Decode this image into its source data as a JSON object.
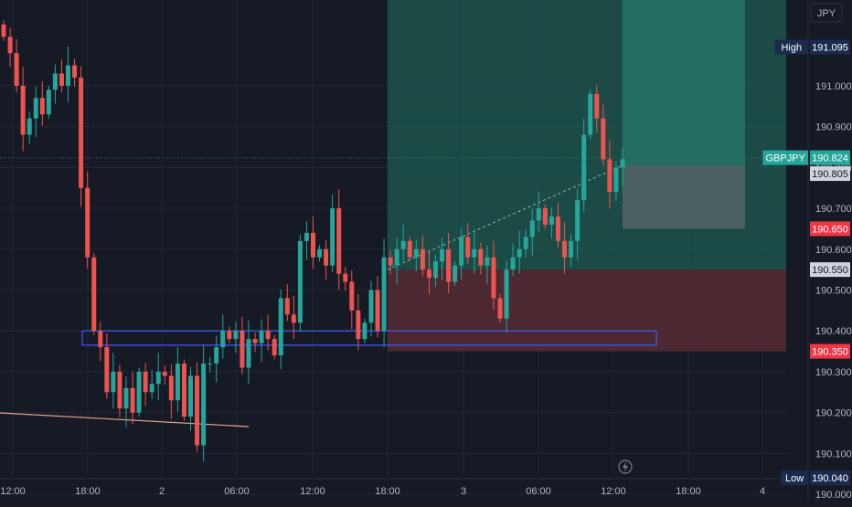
{
  "currency": "JPY",
  "chart_data": {
    "type": "candlestick",
    "symbol": "GBPJPY",
    "y_ticks": [
      "191.000",
      "190.900",
      "190.800",
      "190.700",
      "190.600",
      "190.500",
      "190.400",
      "190.300",
      "190.200",
      "190.100",
      "190.000"
    ],
    "ylim": [
      189.98,
      191.21
    ],
    "x_ticks": [
      "12:00",
      "18:00",
      "2",
      "06:00",
      "12:00",
      "18:00",
      "3",
      "06:00",
      "12:00",
      "18:00",
      "4"
    ],
    "tags": {
      "high": {
        "label": "High",
        "value": "191.095"
      },
      "symbol": {
        "label": "GBPJPY",
        "value": "190.824"
      },
      "last": {
        "value": "190.805"
      },
      "stop": {
        "value": "190.650"
      },
      "level": {
        "value": "190.550"
      },
      "target": {
        "value": "190.350"
      },
      "low": {
        "label": "Low",
        "value": "190.040"
      }
    },
    "zones": [
      {
        "name": "profit-zone",
        "from": 190.55,
        "to": 191.21,
        "color": "#1f5c52"
      },
      {
        "name": "loss-zone",
        "from": 190.35,
        "to": 190.55,
        "color": "#562c34"
      }
    ],
    "candles_close": [
      191.12,
      191.08,
      191.0,
      190.88,
      190.92,
      190.97,
      190.93,
      190.99,
      191.03,
      191.0,
      191.05,
      191.02,
      190.75,
      190.58,
      190.4,
      190.36,
      190.25,
      190.3,
      190.21,
      190.26,
      190.2,
      190.3,
      190.25,
      190.27,
      190.3,
      190.29,
      190.23,
      190.32,
      190.19,
      190.29,
      190.12,
      190.32,
      190.32,
      190.36,
      190.4,
      190.38,
      190.4,
      190.31,
      190.38,
      190.37,
      190.4,
      190.38,
      190.34,
      190.48,
      190.44,
      190.42,
      190.62,
      190.64,
      190.58,
      190.6,
      190.56,
      190.7,
      190.54,
      190.52,
      190.45,
      190.38,
      190.42,
      190.5,
      190.4,
      190.58,
      190.56,
      190.6,
      190.62,
      190.58,
      190.6,
      190.55,
      190.53,
      190.57,
      190.6,
      190.52,
      190.56,
      190.63,
      190.58,
      190.6,
      190.56,
      190.58,
      190.48,
      190.43,
      190.55,
      190.58,
      190.6,
      190.63,
      190.67,
      190.7,
      190.66,
      190.68,
      190.62,
      190.58,
      190.62,
      190.72,
      190.88,
      190.98,
      190.92,
      190.82,
      190.74,
      190.8,
      190.82
    ]
  }
}
